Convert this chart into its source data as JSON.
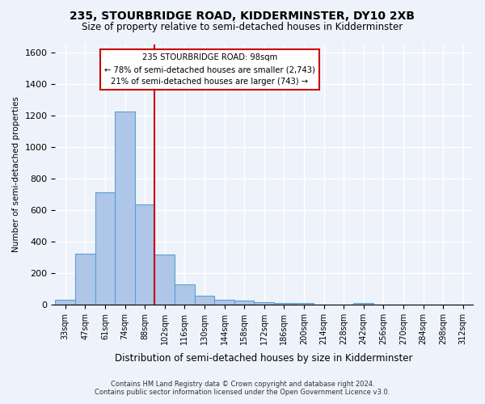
{
  "title1": "235, STOURBRIDGE ROAD, KIDDERMINSTER, DY10 2XB",
  "title2": "Size of property relative to semi-detached houses in Kidderminster",
  "xlabel": "Distribution of semi-detached houses by size in Kidderminster",
  "ylabel": "Number of semi-detached properties",
  "footer1": "Contains HM Land Registry data © Crown copyright and database right 2024.",
  "footer2": "Contains public sector information licensed under the Open Government Licence v3.0.",
  "bar_color": "#aec6e8",
  "bar_edge_color": "#5a9fd4",
  "background_color": "#eef3fb",
  "categories": [
    "33sqm",
    "47sqm",
    "61sqm",
    "74sqm",
    "88sqm",
    "102sqm",
    "116sqm",
    "130sqm",
    "144sqm",
    "158sqm",
    "172sqm",
    "186sqm",
    "200sqm",
    "214sqm",
    "228sqm",
    "242sqm",
    "256sqm",
    "270sqm",
    "284sqm",
    "298sqm",
    "312sqm"
  ],
  "values": [
    30,
    320,
    710,
    1225,
    635,
    315,
    125,
    55,
    30,
    25,
    15,
    10,
    10,
    0,
    0,
    10,
    0,
    0,
    0,
    0,
    0
  ],
  "annotation_text1": "235 STOURBRIDGE ROAD: 98sqm",
  "annotation_text2": "← 78% of semi-detached houses are smaller (2,743)",
  "annotation_text3": "21% of semi-detached houses are larger (743) →",
  "ylim": [
    0,
    1650
  ],
  "yticks": [
    0,
    200,
    400,
    600,
    800,
    1000,
    1200,
    1400,
    1600
  ],
  "grid_color": "#ffffff",
  "annotation_box_color": "#ffffff",
  "annotation_box_edge": "#cc0000",
  "red_line_color": "#cc0000",
  "red_line_x": 4.5
}
